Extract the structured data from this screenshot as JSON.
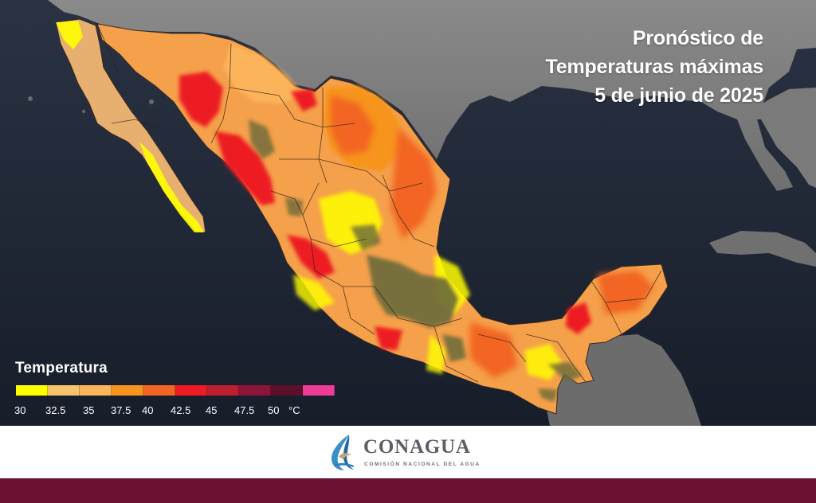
{
  "title": {
    "line1": "Pronóstico de",
    "line2": "Temperaturas máximas",
    "line3": "5 de junio de 2025"
  },
  "legend": {
    "title": "Temperatura",
    "colors": [
      "#ffff00",
      "#f4c36b",
      "#fcb45a",
      "#f7941d",
      "#f26522",
      "#ed1c24",
      "#be1e2d",
      "#8b1538",
      "#5c0f2b",
      "#ee3d96"
    ],
    "ticks": [
      "30",
      "32.5",
      "35",
      "37.5",
      "40",
      "42.5",
      "45",
      "47.5",
      "50",
      "°C"
    ]
  },
  "footer": {
    "logo_name": "CONAGUA",
    "logo_subtitle": "COMISIÓN NACIONAL DEL AGUA",
    "bar_color": "#6b1131"
  },
  "map": {
    "ocean_color": "#1e2736",
    "land_color": "#7d7d7d"
  }
}
